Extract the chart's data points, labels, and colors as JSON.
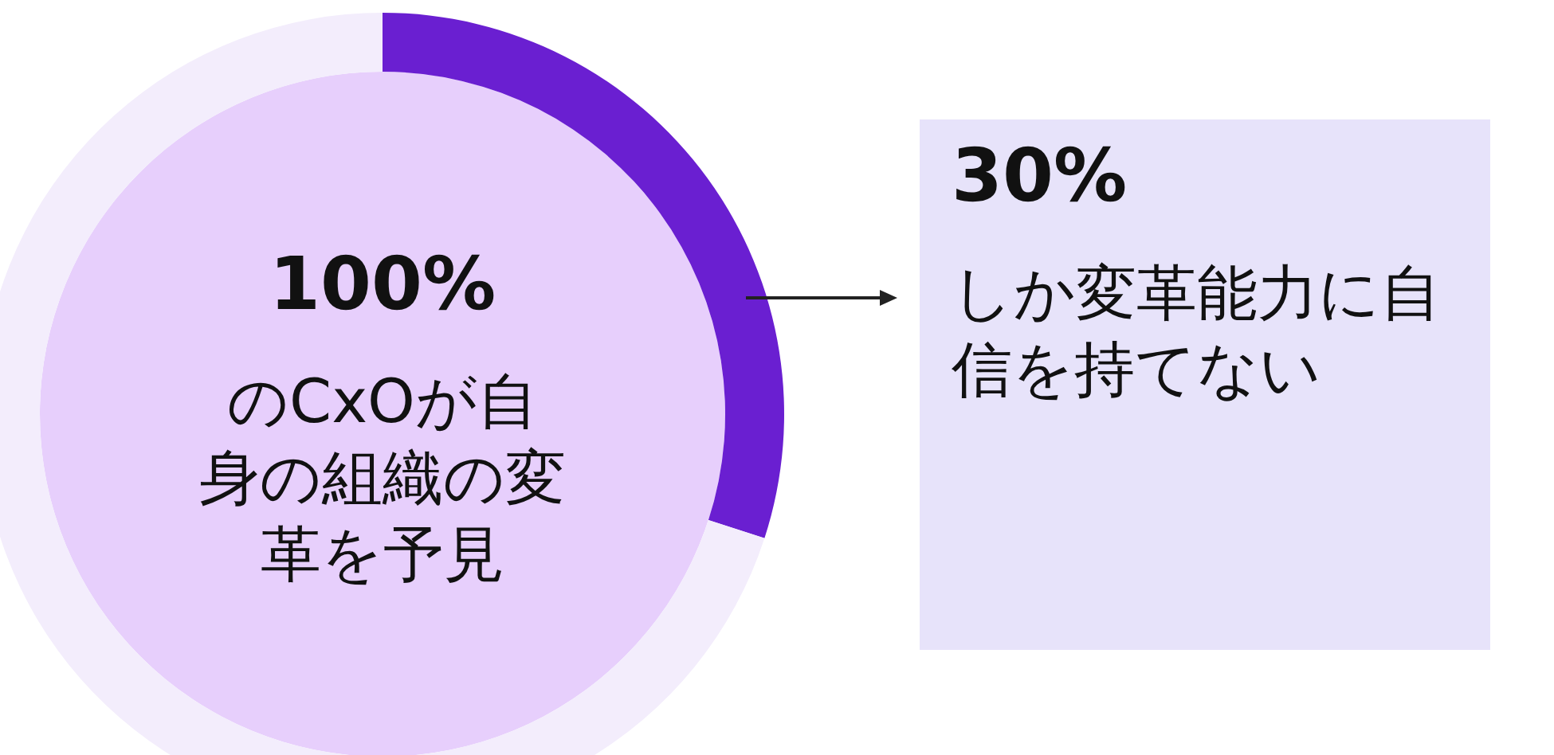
{
  "chart_data": {
    "type": "donut",
    "categories": [
      null,
      null
    ],
    "values": [
      30,
      70
    ],
    "colors": [
      "#6a1fd1",
      "#f3edfc"
    ],
    "annotations": [
      "100%",
      "のCxOが自身の組織の変革を予見",
      "30%",
      "しか変革能力に自信を持てない"
    ]
  }
}
